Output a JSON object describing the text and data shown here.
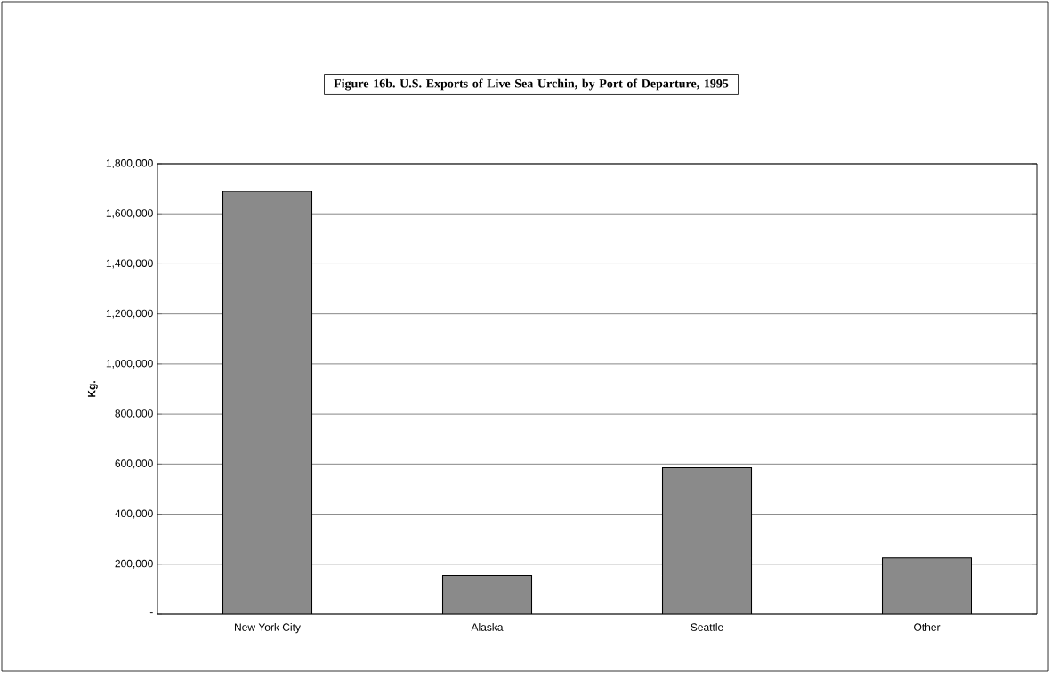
{
  "chart_data": {
    "type": "bar",
    "title": "Figure 16b. U.S. Exports of Live Sea Urchin, by Port of Departure, 1995",
    "ylabel": "Kg.",
    "categories": [
      "New York City",
      "Alaska",
      "Seattle",
      "Other"
    ],
    "values": [
      1690000,
      155000,
      585000,
      225000
    ],
    "color": "#8a8a8a",
    "ylim": [
      0,
      1800000
    ],
    "yticks": [
      {
        "value": 0,
        "label": "-"
      },
      {
        "value": 200000,
        "label": "200,000"
      },
      {
        "value": 400000,
        "label": "400,000"
      },
      {
        "value": 600000,
        "label": "600,000"
      },
      {
        "value": 800000,
        "label": "800,000"
      },
      {
        "value": 1000000,
        "label": "1,000,000"
      },
      {
        "value": 1200000,
        "label": "1,200,000"
      },
      {
        "value": 1400000,
        "label": "1,400,000"
      },
      {
        "value": 1600000,
        "label": "1,600,000"
      },
      {
        "value": 1800000,
        "label": "1,800,000"
      }
    ],
    "grid": "y"
  }
}
